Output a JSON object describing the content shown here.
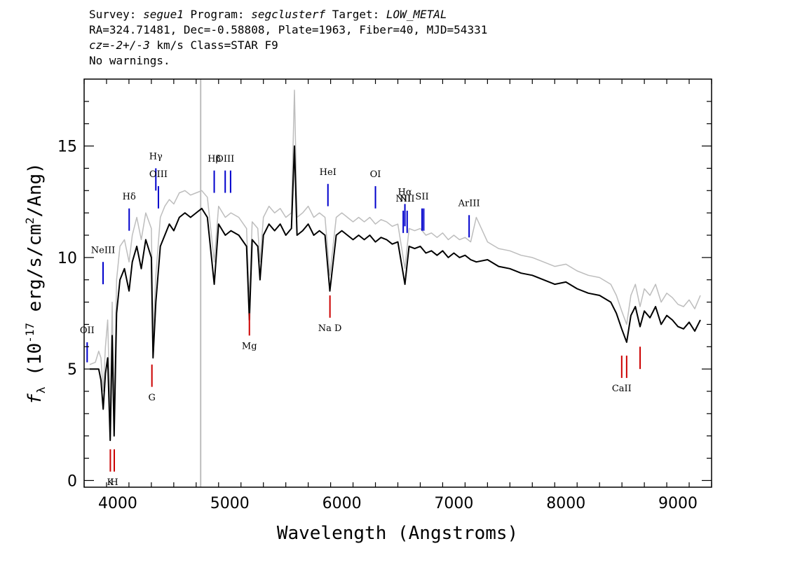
{
  "header": {
    "line1": {
      "survey_label": "Survey: ",
      "survey": "segue1",
      "program_label": " Program: ",
      "program": "segclusterf",
      "target_label": " Target: ",
      "target": "LOW_METAL"
    },
    "line2": "RA=324.71481, Dec=-0.58808, Plate=1963, Fiber=40, MJD=54331",
    "line3": {
      "cz": "cz=-2+/-3",
      "rest": " km/s Class=STAR F9"
    },
    "line4": "No warnings."
  },
  "chart_data": {
    "type": "line",
    "xlabel": "Wavelength (Angstroms)",
    "ylabel": "f_λ (10^-17 erg/s/cm^2/Ang)",
    "xlim": [
      3700,
      9300
    ],
    "ylim": [
      -0.3,
      18
    ],
    "x_ticks": [
      4000,
      5000,
      6000,
      7000,
      8000,
      9000
    ],
    "y_ticks": [
      0,
      5,
      10,
      15
    ],
    "marker_wavelength": 4740,
    "series": [
      {
        "color": "#000000",
        "x": [
          3750,
          3800,
          3830,
          3850,
          3870,
          3890,
          3910,
          3933,
          3950,
          3968,
          3990,
          4020,
          4060,
          4101,
          4130,
          4170,
          4210,
          4250,
          4300,
          4315,
          4340,
          4380,
          4420,
          4460,
          4500,
          4550,
          4600,
          4650,
          4700,
          4750,
          4800,
          4861,
          4900,
          4960,
          5010,
          5080,
          5150,
          5175,
          5200,
          5250,
          5270,
          5300,
          5350,
          5400,
          5450,
          5500,
          5550,
          5577,
          5600,
          5650,
          5700,
          5750,
          5800,
          5850,
          5893,
          5950,
          6000,
          6050,
          6100,
          6150,
          6200,
          6250,
          6300,
          6350,
          6400,
          6450,
          6500,
          6563,
          6600,
          6650,
          6700,
          6750,
          6800,
          6850,
          6900,
          6950,
          7000,
          7050,
          7100,
          7150,
          7200,
          7300,
          7400,
          7500,
          7600,
          7700,
          7800,
          7900,
          8000,
          8100,
          8200,
          8300,
          8400,
          8450,
          8498,
          8542,
          8580,
          8620,
          8662,
          8700,
          8750,
          8800,
          8850,
          8900,
          8950,
          9000,
          9050,
          9100,
          9150,
          9200
        ],
        "y": [
          5.0,
          5.0,
          5.0,
          4.5,
          3.2,
          4.8,
          5.5,
          1.8,
          6.5,
          2.0,
          7.5,
          9.0,
          9.5,
          8.5,
          9.8,
          10.5,
          9.5,
          10.8,
          10.0,
          5.5,
          8.0,
          10.5,
          11.0,
          11.5,
          11.2,
          11.8,
          12.0,
          11.8,
          12.0,
          12.2,
          11.8,
          8.8,
          11.5,
          11.0,
          11.2,
          11.0,
          10.5,
          7.2,
          10.8,
          10.5,
          9.0,
          11.0,
          11.5,
          11.2,
          11.5,
          11.0,
          11.3,
          15.0,
          11.0,
          11.2,
          11.5,
          11.0,
          11.2,
          11.0,
          8.5,
          11.0,
          11.2,
          11.0,
          10.8,
          11.0,
          10.8,
          11.0,
          10.7,
          10.9,
          10.8,
          10.6,
          10.7,
          8.8,
          10.5,
          10.4,
          10.5,
          10.2,
          10.3,
          10.1,
          10.3,
          10.0,
          10.2,
          10.0,
          10.1,
          9.9,
          9.8,
          9.9,
          9.6,
          9.5,
          9.3,
          9.2,
          9.0,
          8.8,
          8.9,
          8.6,
          8.4,
          8.3,
          8.0,
          7.5,
          6.8,
          6.2,
          7.4,
          7.8,
          6.9,
          7.6,
          7.3,
          7.8,
          7.0,
          7.4,
          7.2,
          6.9,
          6.8,
          7.1,
          6.7,
          7.2
        ]
      },
      {
        "color": "#bdbdbd",
        "x": [
          3750,
          3800,
          3830,
          3850,
          3870,
          3890,
          3910,
          3933,
          3950,
          3968,
          3990,
          4020,
          4060,
          4101,
          4130,
          4170,
          4210,
          4250,
          4300,
          4315,
          4340,
          4380,
          4420,
          4460,
          4500,
          4550,
          4600,
          4650,
          4700,
          4750,
          4800,
          4861,
          4900,
          4960,
          5010,
          5080,
          5150,
          5175,
          5200,
          5250,
          5270,
          5300,
          5350,
          5400,
          5450,
          5500,
          5550,
          5577,
          5600,
          5650,
          5700,
          5750,
          5800,
          5850,
          5893,
          5950,
          6000,
          6050,
          6100,
          6150,
          6200,
          6250,
          6300,
          6350,
          6400,
          6450,
          6500,
          6563,
          6600,
          6650,
          6700,
          6750,
          6800,
          6850,
          6900,
          6950,
          7000,
          7050,
          7100,
          7150,
          7200,
          7300,
          7400,
          7500,
          7600,
          7700,
          7800,
          7900,
          8000,
          8100,
          8200,
          8300,
          8400,
          8450,
          8498,
          8542,
          8580,
          8620,
          8662,
          8700,
          8750,
          8800,
          8850,
          8900,
          8950,
          9000,
          9050,
          9100,
          9150,
          9200
        ],
        "y": [
          5.2,
          5.3,
          5.8,
          5.5,
          4.0,
          6.0,
          7.2,
          3.0,
          8.0,
          3.0,
          9.0,
          10.5,
          10.8,
          9.8,
          11.0,
          11.8,
          10.8,
          12.0,
          11.3,
          6.5,
          9.2,
          11.8,
          12.3,
          12.6,
          12.4,
          12.9,
          13.0,
          12.8,
          12.9,
          13.0,
          12.7,
          9.8,
          12.3,
          11.8,
          12.0,
          11.8,
          11.3,
          8.0,
          11.6,
          11.3,
          9.8,
          11.8,
          12.3,
          12.0,
          12.2,
          11.8,
          12.0,
          17.5,
          11.8,
          12.0,
          12.3,
          11.8,
          12.0,
          11.8,
          9.2,
          11.8,
          12.0,
          11.8,
          11.6,
          11.8,
          11.6,
          11.8,
          11.5,
          11.7,
          11.6,
          11.4,
          11.5,
          9.5,
          11.3,
          11.2,
          11.3,
          11.0,
          11.1,
          10.9,
          11.1,
          10.8,
          11.0,
          10.8,
          10.9,
          10.7,
          11.8,
          10.7,
          10.4,
          10.3,
          10.1,
          10.0,
          9.8,
          9.6,
          9.7,
          9.4,
          9.2,
          9.1,
          8.8,
          8.3,
          7.6,
          7.0,
          8.3,
          8.8,
          7.8,
          8.6,
          8.3,
          8.8,
          8.0,
          8.4,
          8.2,
          7.9,
          7.8,
          8.1,
          7.7,
          8.3
        ]
      }
    ],
    "emission_lines": [
      {
        "label": "OII",
        "wavelength": 3727,
        "y0": 5.3,
        "y1": 6.2,
        "label_y": 6.6
      },
      {
        "label": "NeIII",
        "wavelength": 3869,
        "y0": 8.8,
        "y1": 9.8,
        "label_y": 10.2
      },
      {
        "label": "Hδ",
        "wavelength": 4102,
        "y0": 11.2,
        "y1": 12.2,
        "label_y": 12.6
      },
      {
        "label": "Hγ",
        "wavelength": 4340,
        "y0": 13.0,
        "y1": 14.0,
        "label_y": 14.4
      },
      {
        "label": "OIII",
        "wavelength": 4363,
        "y0": 12.2,
        "y1": 13.2,
        "label_y": 13.6
      },
      {
        "label": "Hβ",
        "wavelength": 4861,
        "y0": 12.9,
        "y1": 13.9,
        "label_y": 14.3
      },
      {
        "label": "OIII",
        "wavelength": 4959,
        "y0": 12.9,
        "y1": 13.9,
        "label_y": 14.3
      },
      {
        "label": "",
        "wavelength": 5007,
        "y0": 12.9,
        "y1": 13.9,
        "label_y": 14.3
      },
      {
        "label": "HeI",
        "wavelength": 5876,
        "y0": 12.3,
        "y1": 13.3,
        "label_y": 13.7
      },
      {
        "label": "OI",
        "wavelength": 6300,
        "y0": 12.2,
        "y1": 13.2,
        "label_y": 13.6
      },
      {
        "label": "NII",
        "wavelength": 6548,
        "y0": 11.1,
        "y1": 12.1,
        "label_y": 12.5
      },
      {
        "label": "Hα",
        "wavelength": 6563,
        "y0": 11.4,
        "y1": 12.4,
        "label_y": 12.8
      },
      {
        "label": "NII",
        "wavelength": 6583,
        "y0": 11.1,
        "y1": 12.1,
        "label_y": 12.5
      },
      {
        "label": "SII",
        "wavelength": 6716,
        "y0": 11.2,
        "y1": 12.2,
        "label_y": 12.6
      },
      {
        "label": "",
        "wavelength": 6731,
        "y0": 11.2,
        "y1": 12.2,
        "label_y": 12.6
      },
      {
        "label": "ArIII",
        "wavelength": 7136,
        "y0": 10.9,
        "y1": 11.9,
        "label_y": 12.3
      }
    ],
    "absorption_lines": [
      {
        "label": "K",
        "wavelength": 3934,
        "y0": 0.4,
        "y1": 1.4,
        "label_y": -0.2
      },
      {
        "label": "H",
        "wavelength": 3969,
        "y0": 0.4,
        "y1": 1.4,
        "label_y": -0.2
      },
      {
        "label": "G",
        "wavelength": 4305,
        "y0": 4.2,
        "y1": 5.2,
        "label_y": 3.6
      },
      {
        "label": "Mg",
        "wavelength": 5175,
        "y0": 6.5,
        "y1": 7.5,
        "label_y": 5.9
      },
      {
        "label": "Na D",
        "wavelength": 5894,
        "y0": 7.3,
        "y1": 8.3,
        "label_y": 6.7
      },
      {
        "label": "CaII",
        "wavelength": 8498,
        "y0": 4.6,
        "y1": 5.6,
        "label_y": 4.0
      },
      {
        "label": "",
        "wavelength": 8542,
        "y0": 4.6,
        "y1": 5.6,
        "label_y": 4.0
      },
      {
        "label": "",
        "wavelength": 8662,
        "y0": 5.0,
        "y1": 6.0,
        "label_y": 4.4
      }
    ],
    "colors": {
      "flux": "#000000",
      "error": "#bdbdbd",
      "emission": "#0000cc",
      "absorption": "#cc0000",
      "marker": "#bdbdbd"
    }
  }
}
